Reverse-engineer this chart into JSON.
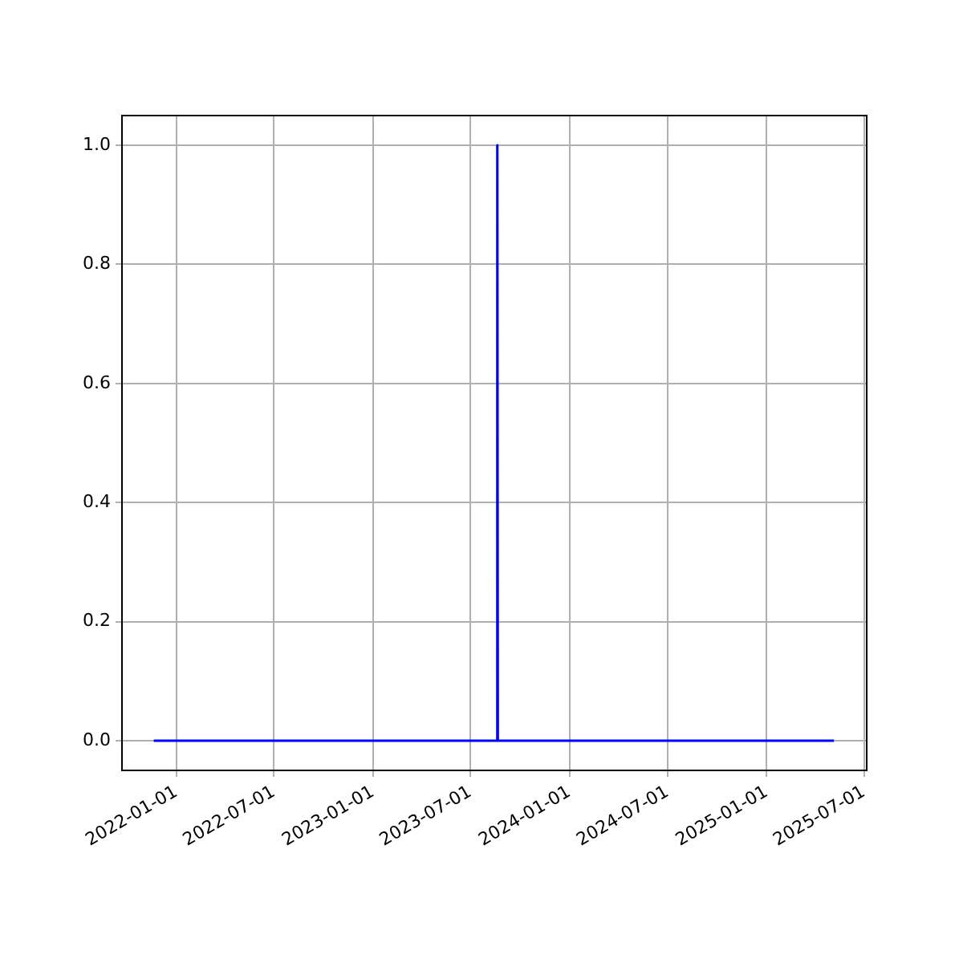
{
  "chart_data": {
    "type": "line",
    "x": [
      "2021-11-20",
      "2023-08-19",
      "2023-08-20",
      "2023-08-21",
      "2025-05-06"
    ],
    "series": [
      {
        "color": "#0000ff",
        "values": [
          0,
          0,
          1,
          0,
          0
        ]
      }
    ],
    "xlim": [
      "2021-09-22",
      "2025-07-06"
    ],
    "ylim": [
      -0.05,
      1.05
    ],
    "xticks": [
      "2022-01-01",
      "2022-07-01",
      "2023-01-01",
      "2023-07-01",
      "2024-01-01",
      "2024-07-01",
      "2025-01-01",
      "2025-07-01"
    ],
    "yticks": [
      {
        "value": 0,
        "label": "0.0"
      },
      {
        "value": 0.2,
        "label": "0.2"
      },
      {
        "value": 0.4,
        "label": "0.4"
      },
      {
        "value": 0.6,
        "label": "0.6"
      },
      {
        "value": 0.8,
        "label": "0.8"
      },
      {
        "value": 1,
        "label": "1.0"
      }
    ],
    "grid": true
  }
}
